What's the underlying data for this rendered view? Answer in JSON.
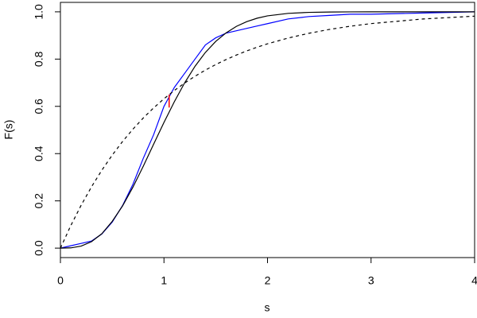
{
  "chart_data": {
    "type": "line",
    "x_label": "s",
    "y_label": "F(s)",
    "x": [
      0,
      0.1,
      0.2,
      0.3,
      0.4,
      0.5,
      0.6,
      0.7,
      0.8,
      0.9,
      1.0,
      1.1,
      1.2,
      1.3,
      1.4,
      1.5,
      1.6,
      1.7,
      1.8,
      1.9,
      2.0,
      2.2,
      2.4,
      2.6,
      2.8,
      3.0,
      3.5,
      4.0
    ],
    "series": [
      {
        "color": "#0000ff",
        "dash": false,
        "values": [
          0,
          0.01,
          0.02,
          0.03,
          0.06,
          0.11,
          0.18,
          0.27,
          0.38,
          0.48,
          0.6,
          0.68,
          0.74,
          0.8,
          0.86,
          0.89,
          0.91,
          0.92,
          0.93,
          0.94,
          0.95,
          0.97,
          0.98,
          0.985,
          0.99,
          0.99,
          0.995,
          1.0
        ]
      },
      {
        "color": "#000000",
        "dash": false,
        "values": [
          0,
          0.0011,
          0.0085,
          0.0272,
          0.061,
          0.113,
          0.1784,
          0.2579,
          0.3466,
          0.4399,
          0.532,
          0.6195,
          0.6998,
          0.7697,
          0.8282,
          0.8749,
          0.9111,
          0.9387,
          0.9587,
          0.9731,
          0.983,
          0.9936,
          0.9978,
          0.9993,
          0.9998,
          1.0,
          1.0,
          1.0
        ]
      },
      {
        "color": "#000000",
        "dash": true,
        "values": [
          0,
          0.0952,
          0.1813,
          0.2592,
          0.3297,
          0.3935,
          0.4512,
          0.5034,
          0.5507,
          0.5934,
          0.6321,
          0.6671,
          0.6988,
          0.7275,
          0.7534,
          0.7769,
          0.7981,
          0.8173,
          0.8347,
          0.8504,
          0.8647,
          0.8892,
          0.9093,
          0.9257,
          0.9392,
          0.9502,
          0.9698,
          0.9817
        ]
      }
    ],
    "ks_segment": {
      "x": 1.05,
      "y": [
        0.595,
        0.65
      ],
      "color": "#ff0000"
    },
    "xlim": [
      0,
      4
    ],
    "xticks": [
      0,
      1,
      2,
      3,
      4
    ],
    "ylim": [
      -0.04,
      1.04
    ],
    "yticks": [
      {
        "value": 0,
        "label": "0.0"
      },
      0.2,
      0.4,
      0.6,
      0.8,
      {
        "value": 1,
        "label": "1.0"
      }
    ]
  }
}
